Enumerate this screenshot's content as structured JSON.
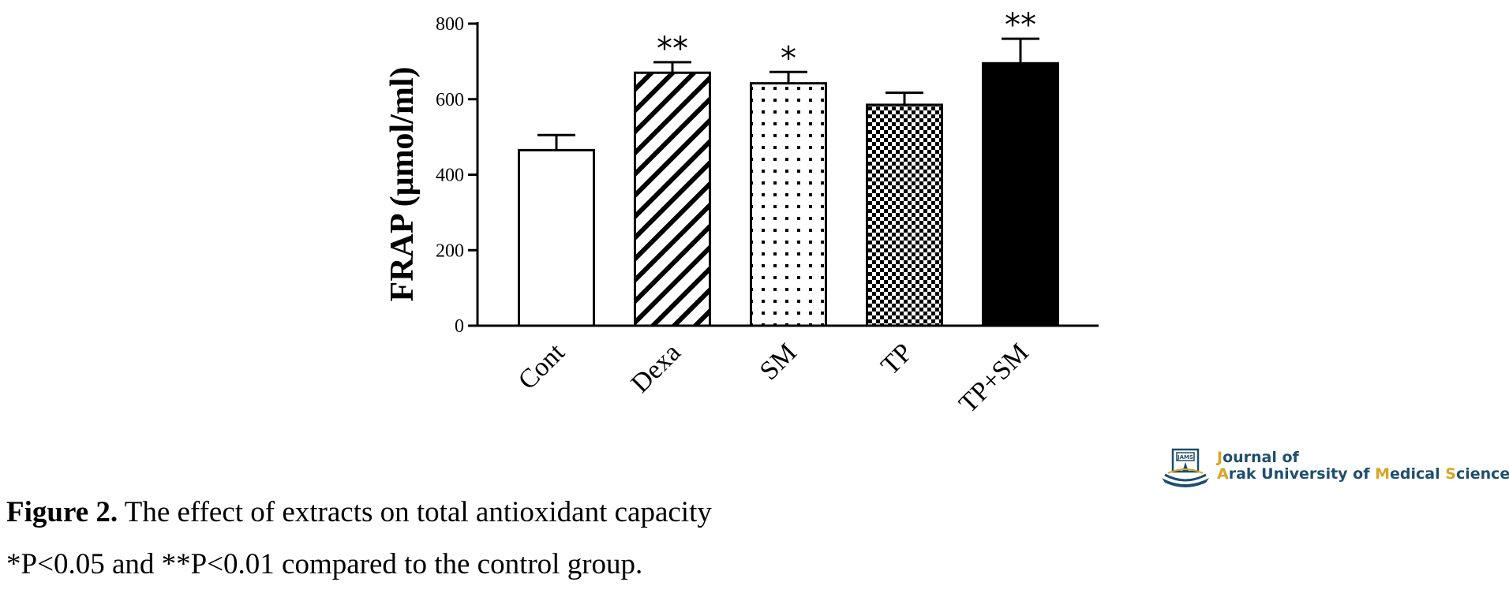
{
  "chart_data": {
    "type": "bar",
    "categories": [
      "Cont",
      "Dexa",
      "SM",
      "TP",
      "TP+SM"
    ],
    "values": [
      465,
      670,
      642,
      585,
      695
    ],
    "errors": [
      40,
      28,
      30,
      32,
      65
    ],
    "significance": [
      "",
      "**",
      "*",
      "",
      "**"
    ],
    "patterns": [
      "empty",
      "diagonal-hatch",
      "dots",
      "checker",
      "solid"
    ],
    "ylabel": "FRAP (μmol/ml)",
    "xlabel": "",
    "ylim": [
      0,
      800
    ],
    "yticks": [
      0,
      200,
      400,
      600,
      800
    ],
    "grid": false,
    "colors": {
      "bar_stroke": "#000000",
      "fill": "#000000",
      "background": "#ffffff"
    }
  },
  "caption": {
    "figure_label": "Figure 2.",
    "figure_text": " The effect of extracts on total antioxidant capacity",
    "note": "*P<0.05 and **P<0.01 compared to the control group."
  },
  "logo": {
    "emblem_text": "JAMS",
    "line1_first": "J",
    "line1_rest": "ournal of",
    "line2_a": "A",
    "line2_b": "rak University of ",
    "line2_c": "M",
    "line2_d": "edical ",
    "line2_e": "S",
    "line2_f": "ciences",
    "colors": {
      "primary": "#1f4e6e",
      "accent": "#d8a520"
    }
  }
}
